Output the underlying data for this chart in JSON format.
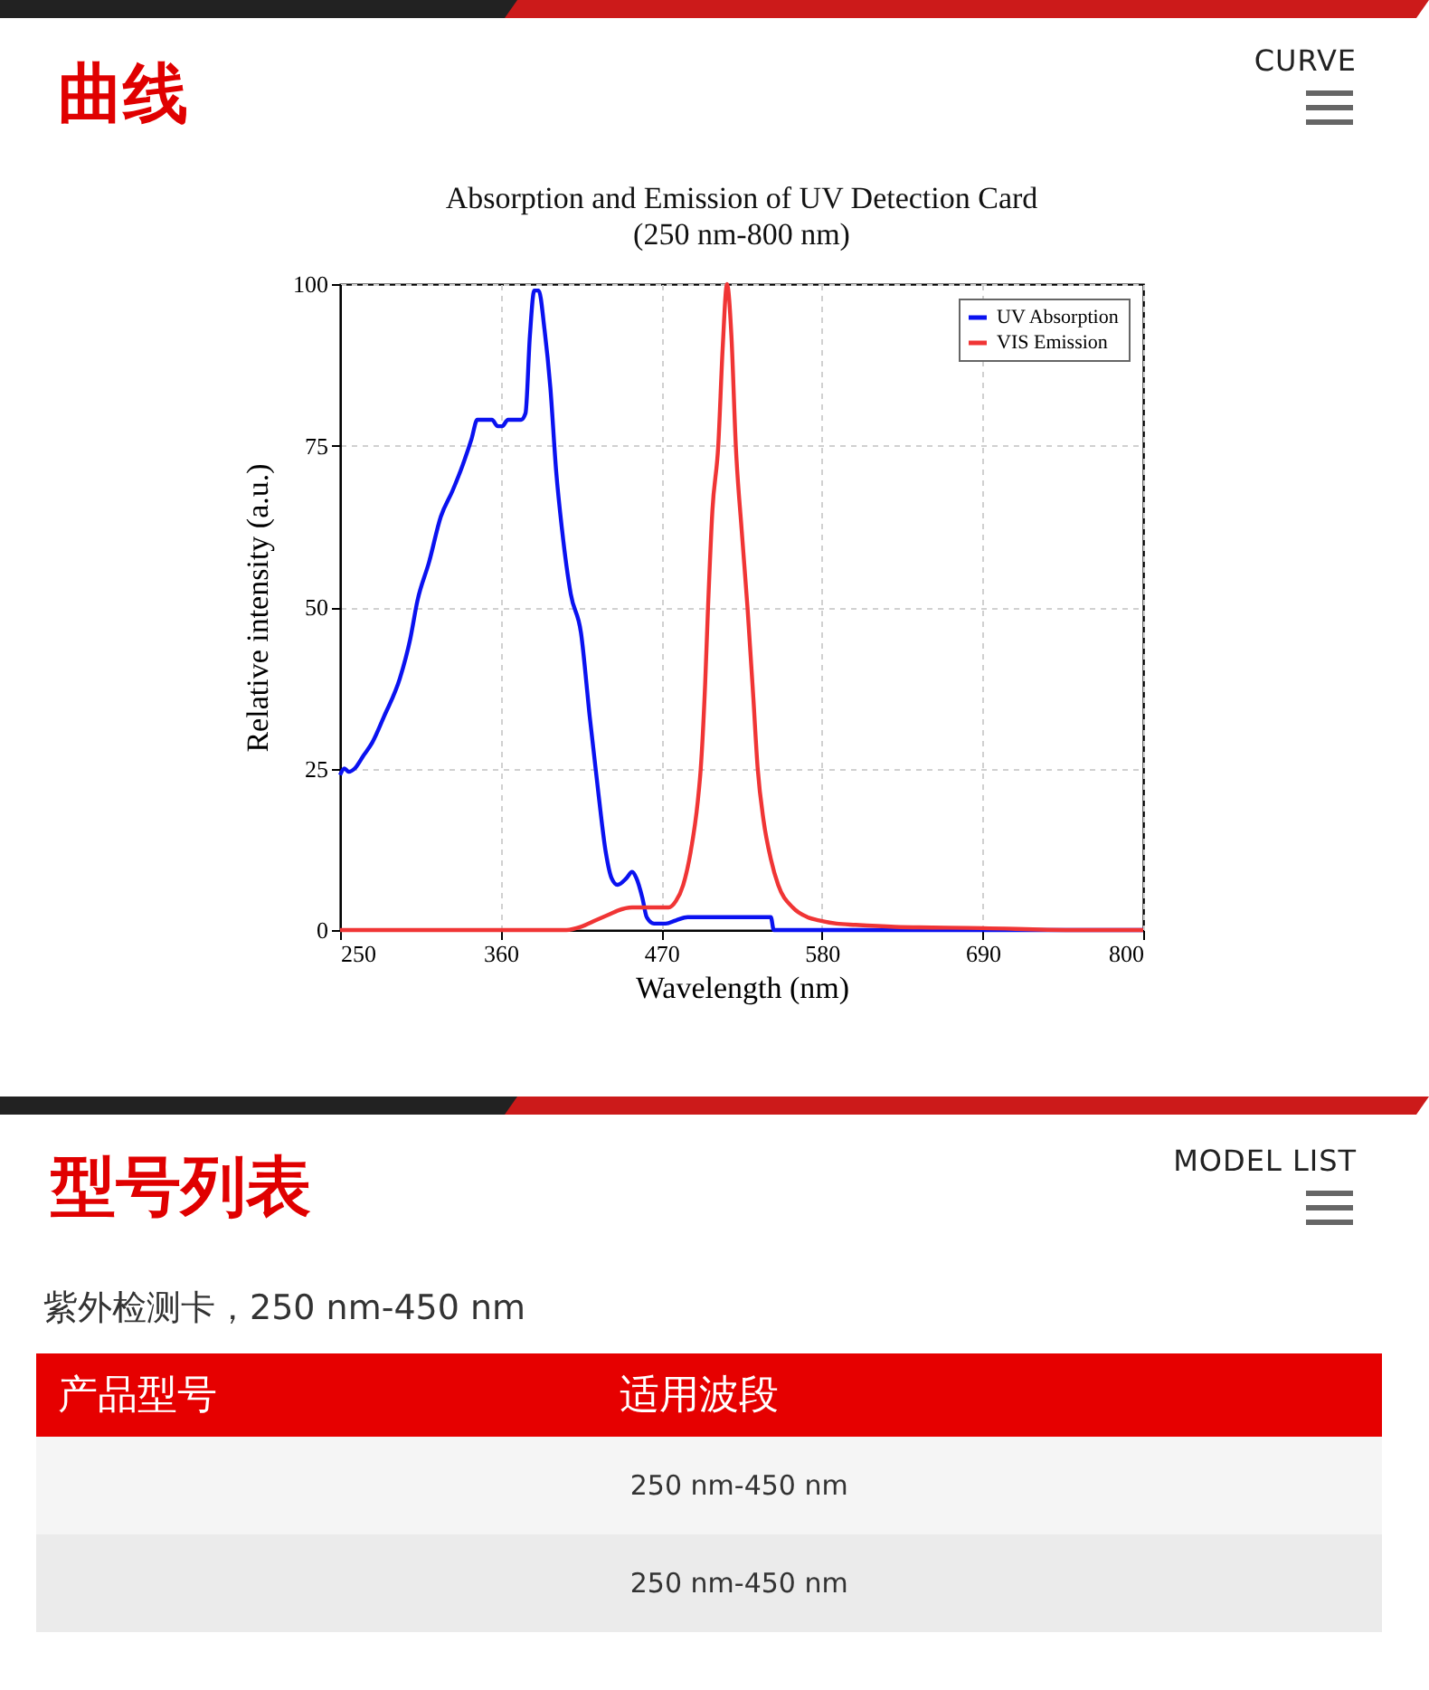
{
  "chart_data": {
    "type": "line",
    "title": "Absorption and Emission of UV Detection Card",
    "subtitle": "(250 nm-800 nm)",
    "xlabel": "Wavelength (nm)",
    "ylabel": "Relative intensity (a.u.)",
    "xlim": [
      250,
      800
    ],
    "xticks": [
      250,
      360,
      470,
      580,
      690,
      800
    ],
    "ylim": [
      0,
      100
    ],
    "yticks": [
      0,
      25,
      50,
      75,
      100
    ],
    "grid": true,
    "legend": "top right",
    "line_style": "solid",
    "marker": "none",
    "series": [
      {
        "name": "UV Absorption",
        "color": "#0a12f0",
        "x": [
          250,
          253,
          256,
          260,
          266,
          272,
          280,
          291,
          298,
          303,
          311,
          319,
          327,
          334,
          340,
          344,
          350,
          354,
          358,
          361,
          365,
          371,
          374,
          377,
          380,
          383,
          386,
          390,
          394,
          398,
          402,
          408,
          415,
          421,
          427,
          432,
          436,
          440,
          446,
          450,
          453,
          457,
          460,
          465,
          473,
          480,
          488,
          500,
          520,
          545,
          547,
          560,
          600,
          700,
          800
        ],
        "values": [
          24,
          25,
          24.5,
          25,
          27,
          29,
          33,
          39,
          45,
          51,
          57,
          64,
          68,
          72,
          76,
          79,
          79,
          79,
          78,
          78,
          79,
          79,
          79,
          80,
          92,
          99,
          99,
          93,
          84,
          71,
          62,
          52,
          46,
          33,
          21,
          12,
          8,
          7,
          8,
          9,
          8,
          5,
          2,
          1,
          1,
          1.5,
          2,
          2,
          2,
          2,
          0,
          0,
          0,
          0,
          0
        ]
      },
      {
        "name": "VIS Emission",
        "color": "#f03535",
        "x": [
          250,
          300,
          350,
          400,
          405,
          415,
          425,
          435,
          440,
          450,
          460,
          470,
          475,
          480,
          485,
          490,
          495,
          497,
          500,
          502,
          505,
          509,
          512,
          515,
          518,
          521,
          525,
          529,
          533,
          536,
          540,
          545,
          550,
          560,
          570,
          578,
          590,
          603,
          630,
          690,
          750,
          800
        ],
        "values": [
          0,
          0,
          0,
          0,
          0,
          0.5,
          1.5,
          2.5,
          3,
          3.5,
          3.5,
          3.5,
          3.5,
          4.5,
          7,
          12,
          20,
          25,
          38,
          50,
          65,
          75,
          90,
          100,
          92,
          75,
          62,
          50,
          36,
          25,
          17,
          11,
          7,
          3.5,
          2,
          1.5,
          1,
          0.8,
          0.5,
          0.3,
          0,
          0
        ]
      }
    ],
    "annotations": [
      "曲线",
      "CURVE",
      "型号列表",
      "MODEL LIST",
      "紫外检测卡，250 nm-450 nm",
      "产品型号",
      "适用波段",
      "250 nm-450 nm",
      "250 nm-450 nm"
    ]
  }
}
